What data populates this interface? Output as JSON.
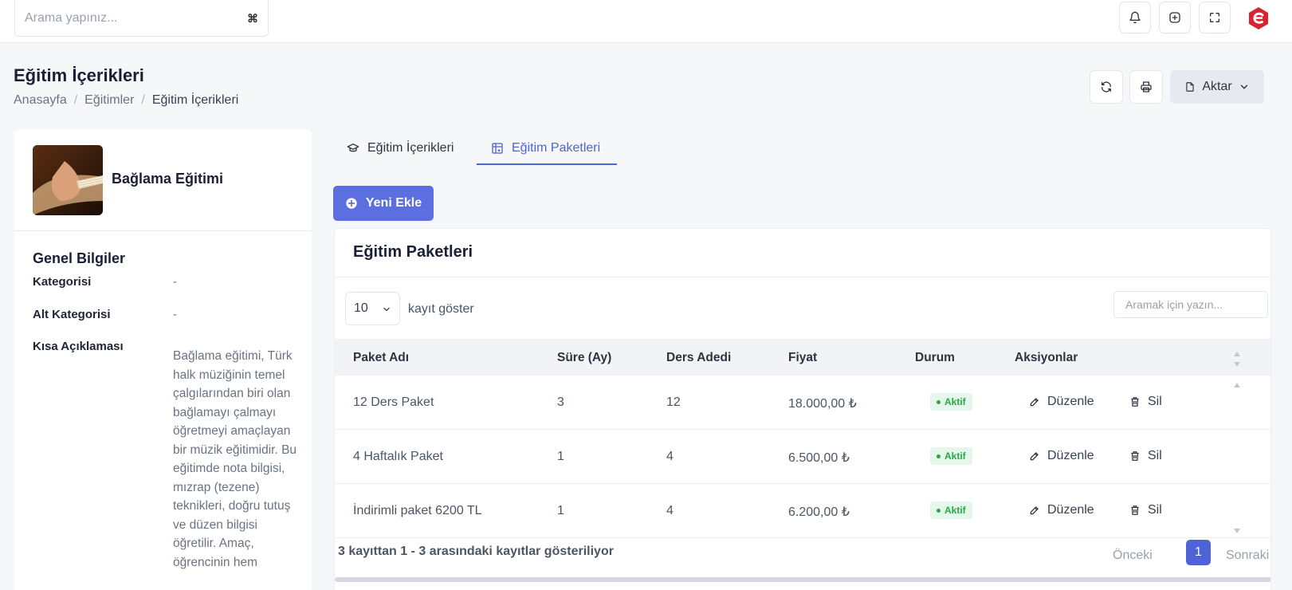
{
  "topbar": {
    "search_placeholder": "Arama yapınız...",
    "search_shortcut": "⌘",
    "icons": [
      "bell-icon",
      "plus-circle-icon",
      "fullscreen-icon"
    ],
    "logo_color": "#d9232e"
  },
  "header": {
    "title": "Eğitim İçerikleri",
    "breadcrumb": [
      "Anasayfa",
      "Eğitimler",
      "Eğitim İçerikleri"
    ],
    "export_label": "Aktar"
  },
  "course": {
    "name": "Bağlama Eğitimi",
    "section_title": "Genel Bilgiler",
    "fields": [
      {
        "label": "Kategorisi",
        "value": "-"
      },
      {
        "label": "Alt Kategorisi",
        "value": "-"
      },
      {
        "label": "Kısa Açıklaması",
        "value": "Bağlama eğitimi, Türk halk müziğinin temel çalgılarından biri olan bağlamayı çalmayı öğretmeyi amaçlayan bir müzik eğitimidir. Bu eğitimde nota bilgisi, mızrap (tezene) teknikleri, doğru tutuş ve düzen bilgisi öğretilir. Amaç, öğrencinin hem"
      }
    ]
  },
  "tabs": [
    {
      "label": "Eğitim İçerikleri",
      "active": false
    },
    {
      "label": "Eğitim Paketleri",
      "active": true
    }
  ],
  "new_button": "Yeni Ekle",
  "table": {
    "title": "Eğitim Paketleri",
    "page_length": "10",
    "page_length_label": "kayıt göster",
    "search_placeholder": "Aramak için yazın...",
    "columns": [
      "Paket Adı",
      "Süre (Ay)",
      "Ders Adedi",
      "Fiyat",
      "Durum",
      "Aksiyonlar"
    ],
    "rows": [
      {
        "name": "12 Ders Paket",
        "duration": "3",
        "lessons": "12",
        "price": "18.000,00 ₺",
        "status": "Aktif"
      },
      {
        "name": "4 Haftalık Paket",
        "duration": "1",
        "lessons": "4",
        "price": "6.500,00 ₺",
        "status": "Aktif"
      },
      {
        "name": "İndirimli paket 6200 TL",
        "duration": "1",
        "lessons": "4",
        "price": "6.200,00 ₺",
        "status": "Aktif"
      }
    ],
    "edit_label": "Düzenle",
    "delete_label": "Sil",
    "info": "3 kayıttan 1 - 3 arasındaki kayıtlar gösteriliyor",
    "prev": "Önceki",
    "current_page": "1",
    "next": "Sonraki"
  },
  "colors": {
    "accent": "#4f63d9",
    "button": "#5b6fe0",
    "status_active": "#28a745"
  }
}
